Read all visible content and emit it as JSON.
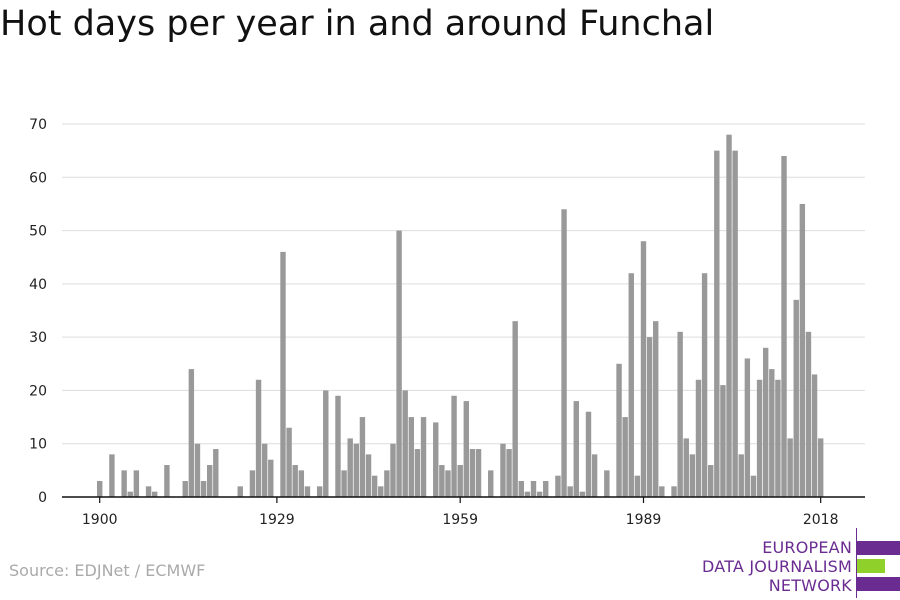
{
  "title": "Hot days per year in and around Funchal",
  "source": "Source: EDJNet / ECMWF",
  "logo": {
    "lines": [
      "EUROPEAN",
      "DATA JOURNALISM",
      "NETWORK"
    ],
    "colors": [
      "#6b2c91",
      "#8fd12a",
      "#6b2c91"
    ]
  },
  "chart_data": {
    "type": "bar",
    "title": "Hot days per year in and around Funchal",
    "xlabel": "",
    "ylabel": "",
    "x_start": 1900,
    "x_end": 2018,
    "xticks": [
      1900,
      1929,
      1959,
      1989,
      2018
    ],
    "yticks": [
      0,
      10,
      20,
      30,
      40,
      50,
      60,
      70
    ],
    "ylim": [
      0,
      70
    ],
    "grid": true,
    "bar_color": "#999999",
    "values": [
      3,
      0,
      8,
      0,
      5,
      1,
      5,
      0,
      2,
      1,
      0,
      6,
      0,
      0,
      3,
      24,
      10,
      3,
      6,
      9,
      0,
      0,
      0,
      2,
      0,
      5,
      22,
      10,
      7,
      0,
      46,
      13,
      6,
      5,
      2,
      0,
      2,
      20,
      0,
      19,
      5,
      11,
      10,
      15,
      8,
      4,
      2,
      5,
      10,
      50,
      20,
      15,
      9,
      15,
      0,
      14,
      6,
      5,
      19,
      6,
      18,
      9,
      9,
      0,
      5,
      0,
      10,
      9,
      33,
      3,
      1,
      3,
      1,
      3,
      0,
      4,
      54,
      2,
      18,
      1,
      16,
      8,
      0,
      5,
      0,
      25,
      15,
      42,
      4,
      48,
      30,
      33,
      2,
      0,
      2,
      31,
      11,
      8,
      22,
      42,
      6,
      65,
      21,
      68,
      65,
      8,
      26,
      4,
      22,
      28,
      24,
      22,
      64,
      11,
      37,
      55,
      31,
      23,
      11
    ]
  }
}
